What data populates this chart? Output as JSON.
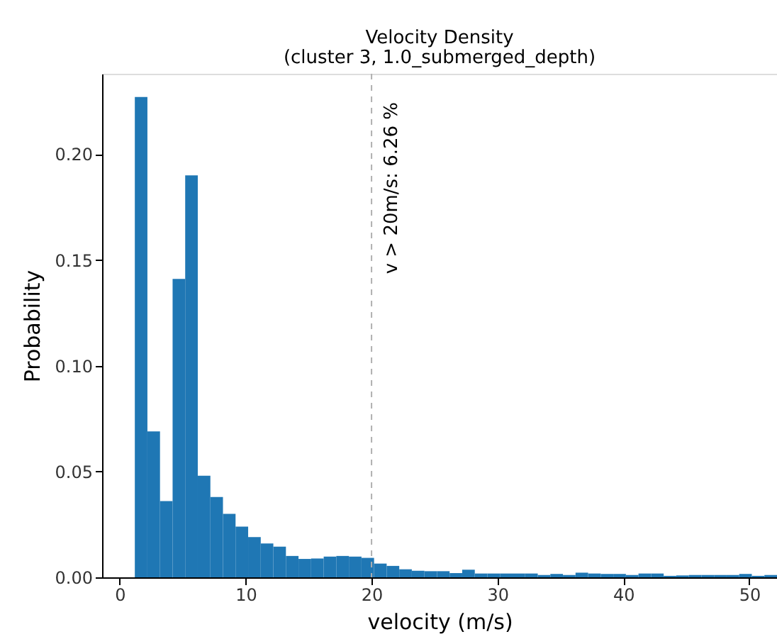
{
  "chart_data": {
    "type": "histogram",
    "title": "Velocity Density",
    "subtitle": "(cluster 3, 1.0_submerged_depth)",
    "xlabel": "velocity (m/s)",
    "ylabel": "Probability",
    "bins": [
      1.2,
      2.2,
      3.2,
      4.2,
      5.2,
      6.2,
      7.2,
      8.2,
      9.2,
      10.2,
      11.2,
      12.2,
      13.2,
      14.2,
      15.2,
      16.2,
      17.2,
      18.2,
      19.2,
      20.2,
      21.2,
      22.2,
      23.2,
      24.2,
      25.2,
      26.2,
      27.2,
      28.2,
      29.2,
      30.2,
      31.2,
      32.2,
      33.2,
      34.2,
      35.2,
      36.2,
      37.2,
      38.2,
      39.2,
      40.2,
      41.2,
      42.2,
      43.2,
      44.2,
      45.2,
      46.2,
      47.2,
      48.2,
      49.2,
      50.2,
      51.2,
      52.2
    ],
    "values": [
      0.227,
      0.069,
      0.036,
      0.141,
      0.19,
      0.048,
      0.038,
      0.03,
      0.024,
      0.019,
      0.016,
      0.0145,
      0.0101,
      0.0087,
      0.0089,
      0.0098,
      0.0101,
      0.0098,
      0.0092,
      0.0065,
      0.0054,
      0.0038,
      0.0031,
      0.0029,
      0.0029,
      0.002,
      0.0036,
      0.0018,
      0.0018,
      0.0018,
      0.0018,
      0.0018,
      0.0011,
      0.0016,
      0.0011,
      0.0022,
      0.0018,
      0.0016,
      0.0016,
      0.0011,
      0.0018,
      0.0018,
      0.0007,
      0.0009,
      0.0011,
      0.0011,
      0.0011,
      0.0011,
      0.0016,
      0.0007,
      0.0011
    ],
    "color": "#1f77b4",
    "xlim": [
      -1.4,
      52.2
    ],
    "xticks": [
      0,
      10,
      20,
      30,
      40,
      50
    ],
    "ylim": [
      0,
      0.238
    ],
    "yticks": [
      {
        "value": 0,
        "label": "0.00"
      },
      {
        "value": 0.05,
        "label": "0.05"
      },
      {
        "value": 0.1,
        "label": "0.10"
      },
      {
        "value": 0.15,
        "label": "0.15"
      },
      {
        "value": 0.2,
        "label": "0.20"
      }
    ],
    "ref_lines": [
      {
        "axis": "x",
        "value": 20,
        "label": "v > 20m/s: 6.26 %",
        "color": "#b0b0b0",
        "line_style": "dashed"
      }
    ],
    "grid": false
  }
}
